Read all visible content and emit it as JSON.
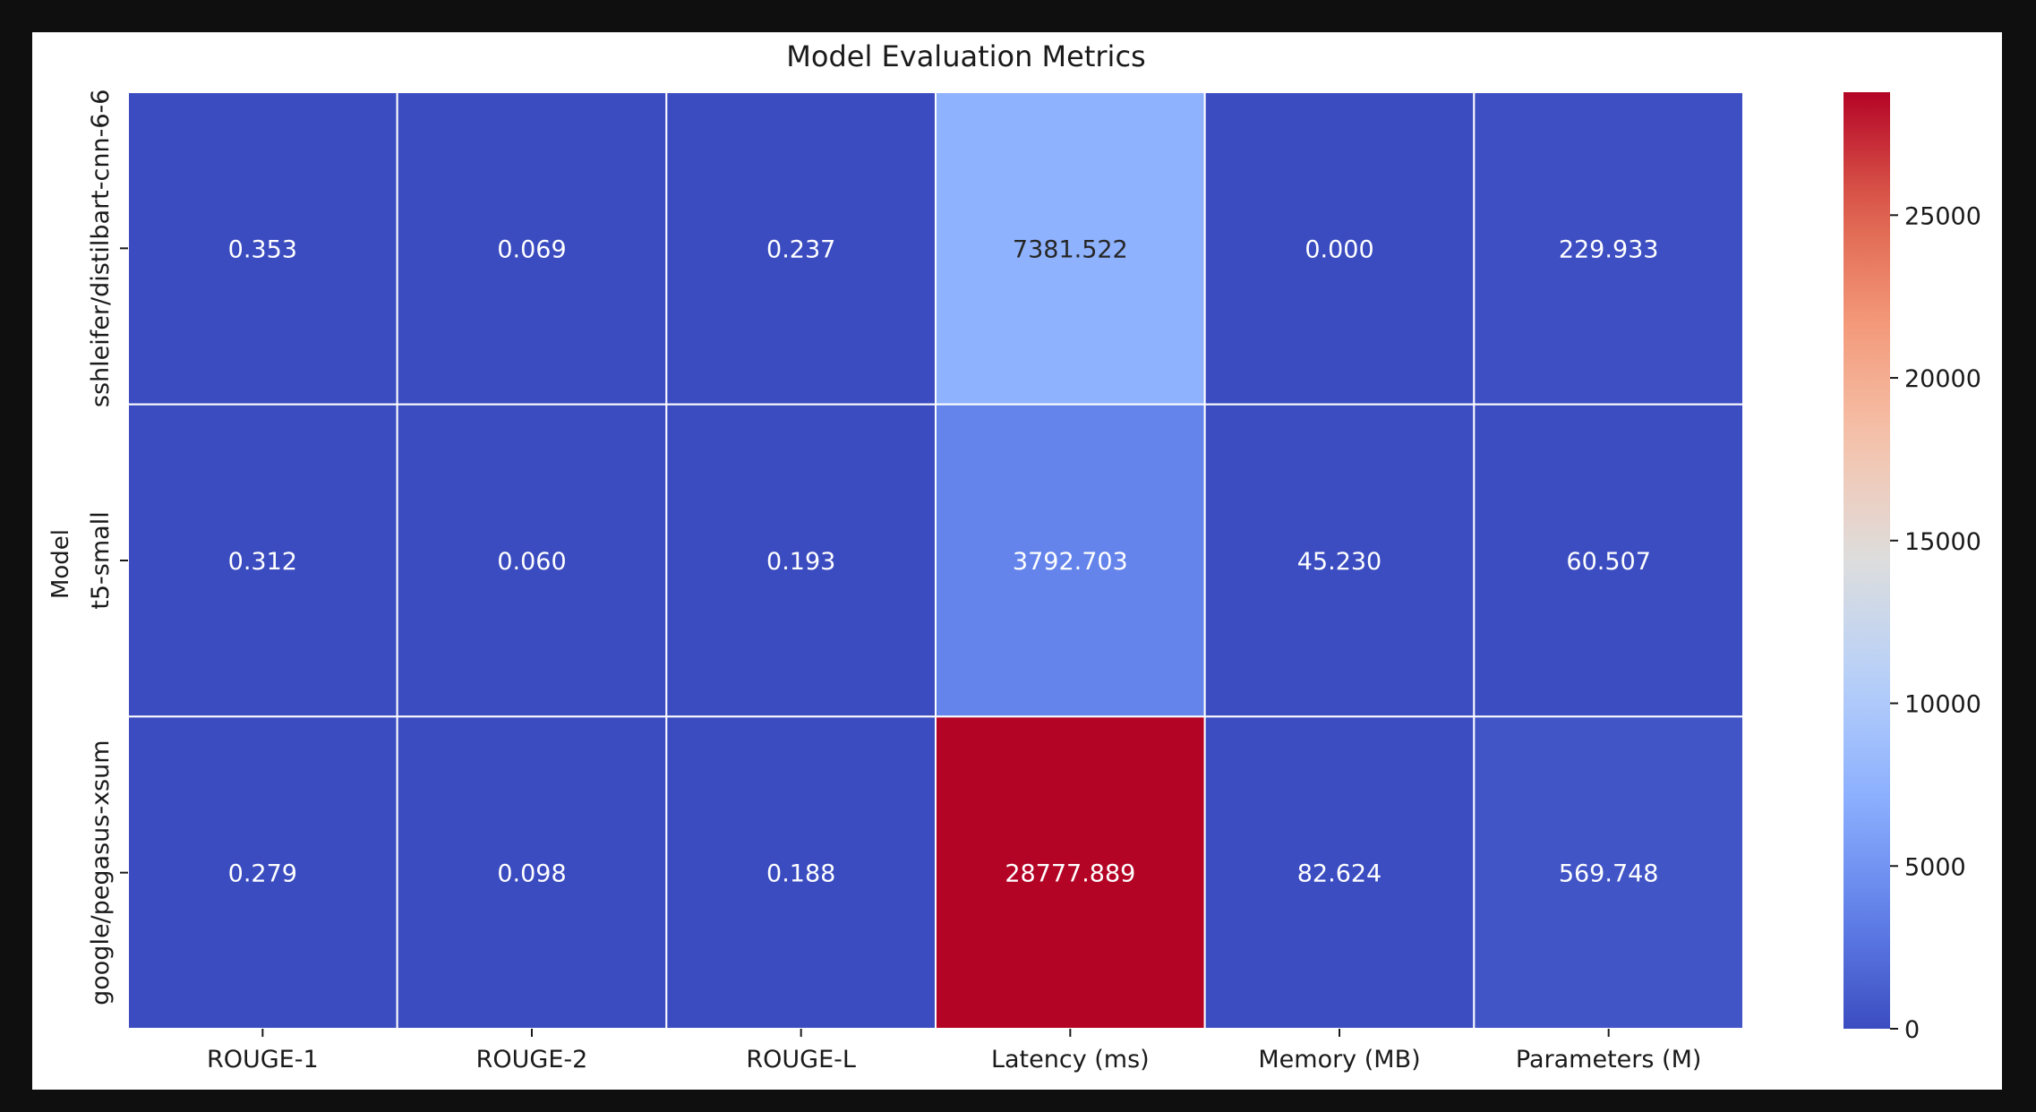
{
  "chart_data": {
    "type": "heatmap",
    "title": "Model Evaluation Metrics",
    "ylabel": "Model",
    "xlabel": "",
    "x_categories": [
      "ROUGE-1",
      "ROUGE-2",
      "ROUGE-L",
      "Latency (ms)",
      "Memory (MB)",
      "Parameters (M)"
    ],
    "y_categories": [
      "sshleifer/distilbart-cnn-6-6",
      "t5-small",
      "google/pegasus-xsum"
    ],
    "values": [
      [
        0.353,
        0.069,
        0.237,
        7381.522,
        0.0,
        229.933
      ],
      [
        0.312,
        0.06,
        0.193,
        3792.703,
        45.23,
        60.507
      ],
      [
        0.279,
        0.098,
        0.188,
        28777.889,
        82.624,
        569.748
      ]
    ],
    "value_labels": [
      [
        "0.353",
        "0.069",
        "0.237",
        "7381.522",
        "0.000",
        "229.933"
      ],
      [
        "0.312",
        "0.060",
        "0.193",
        "3792.703",
        "45.230",
        "60.507"
      ],
      [
        "0.279",
        "0.098",
        "0.188",
        "28777.889",
        "82.624",
        "569.748"
      ]
    ],
    "colormap": "coolwarm",
    "colorbar": {
      "min": 0,
      "max": 28777.889,
      "ticks": [
        0,
        5000,
        10000,
        15000,
        20000,
        25000
      ],
      "tick_labels": [
        "0",
        "5000",
        "10000",
        "15000",
        "20000",
        "25000"
      ]
    },
    "grid": true,
    "gridline_color": "#ffffff"
  }
}
